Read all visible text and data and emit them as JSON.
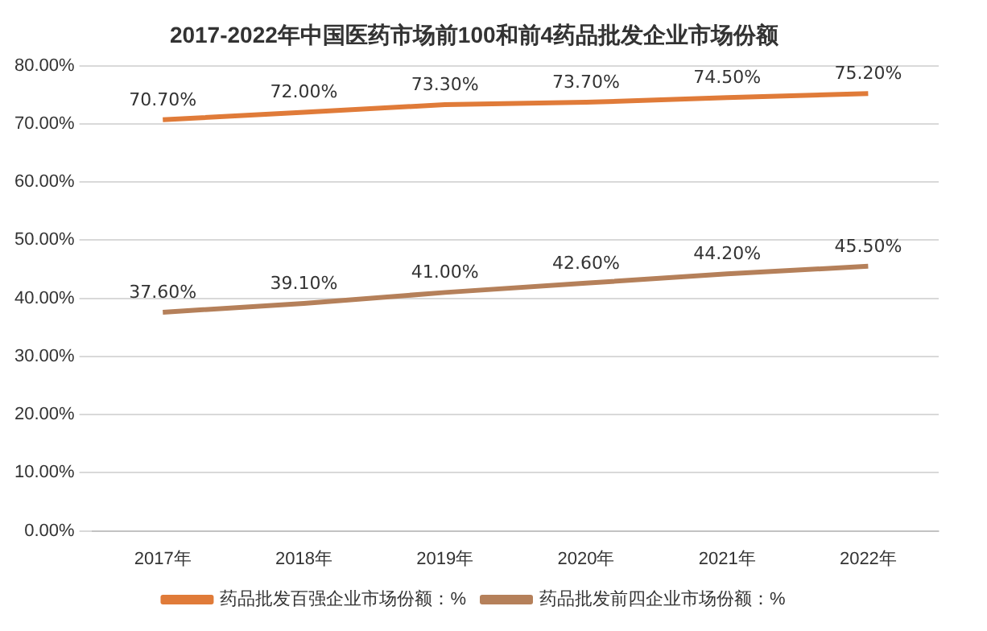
{
  "chart_data": {
    "type": "line",
    "title": "2017-2022年中国医药市场前100和前4药品批发企业市场份额",
    "categories": [
      "2017年",
      "2018年",
      "2019年",
      "2020年",
      "2021年",
      "2022年"
    ],
    "series": [
      {
        "name": "药品批发百强企业市场份额：%",
        "color": "#e07b39",
        "values": [
          70.7,
          72.0,
          73.3,
          73.7,
          74.5,
          75.2
        ],
        "value_labels": [
          "70.70%",
          "72.00%",
          "73.30%",
          "73.70%",
          "74.50%",
          "75.20%"
        ]
      },
      {
        "name": "药品批发前四企业市场份额：%",
        "color": "#b5805a",
        "values": [
          37.6,
          39.1,
          41.0,
          42.6,
          44.2,
          45.5
        ],
        "value_labels": [
          "37.60%",
          "39.10%",
          "41.00%",
          "42.60%",
          "44.20%",
          "45.50%"
        ]
      }
    ],
    "ylim": [
      0,
      80
    ],
    "yticks": [
      {
        "value": 0,
        "label": "0.00%"
      },
      {
        "value": 10,
        "label": "10.00%"
      },
      {
        "value": 20,
        "label": "20.00%"
      },
      {
        "value": 30,
        "label": "30.00%"
      },
      {
        "value": 40,
        "label": "40.00%"
      },
      {
        "value": 50,
        "label": "50.00%"
      },
      {
        "value": 60,
        "label": "60.00%"
      },
      {
        "value": 70,
        "label": "70.00%"
      },
      {
        "value": 80,
        "label": "80.00%"
      }
    ],
    "grid": "y",
    "legend": "bottom",
    "marker": "none",
    "line_style": "solid"
  }
}
